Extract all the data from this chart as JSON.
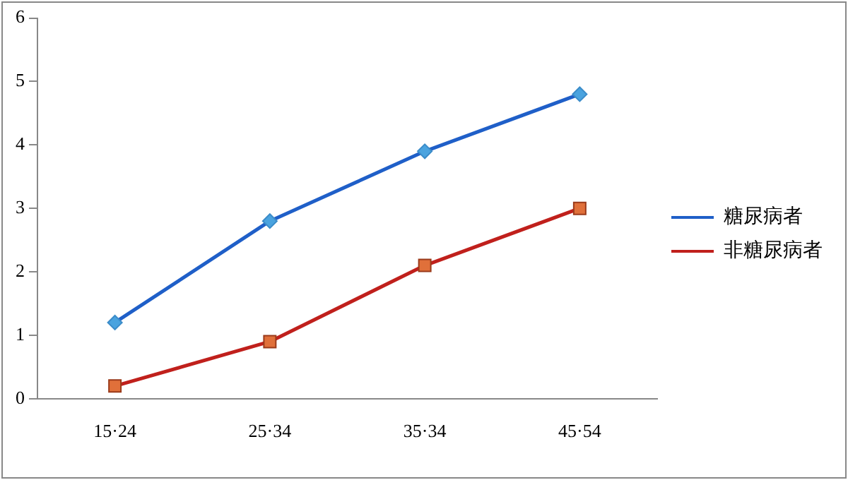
{
  "chart_data": {
    "type": "line",
    "categories": [
      "15·24",
      "25·34",
      "35·34",
      "45·54"
    ],
    "series": [
      {
        "name": "糖尿病者",
        "color": "#1f5fc8",
        "marker": "diamond",
        "values": [
          1.2,
          2.8,
          3.9,
          4.8
        ]
      },
      {
        "name": "非糖尿病者",
        "color": "#c0201c",
        "marker": "square",
        "values": [
          0.2,
          0.9,
          2.1,
          3.0
        ]
      }
    ],
    "ylim": [
      0,
      6
    ],
    "yticks": [
      0,
      1,
      2,
      3,
      4,
      5,
      6
    ],
    "grid": false,
    "legend": "right",
    "line_style": "solid"
  }
}
